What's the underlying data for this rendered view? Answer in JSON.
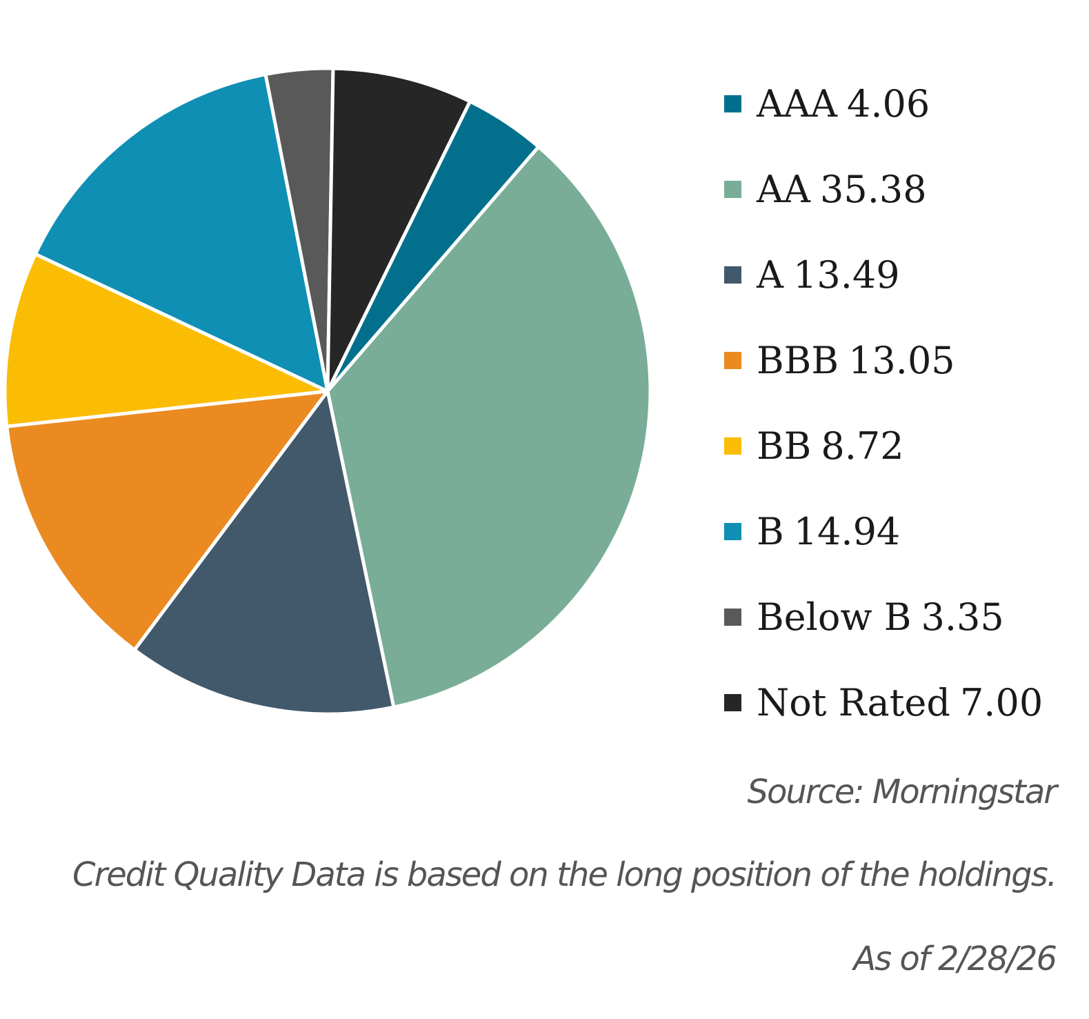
{
  "chart_data": {
    "type": "pie",
    "categories": [
      "AAA",
      "AA",
      "A",
      "BBB",
      "BB",
      "B",
      "Below B",
      "Not Rated"
    ],
    "values": [
      4.06,
      35.38,
      13.49,
      13.05,
      8.72,
      14.94,
      3.35,
      7.0
    ],
    "value_labels": [
      "4.06",
      "35.38",
      "13.49",
      "13.05",
      "8.72",
      "14.94",
      "3.35",
      "7.00"
    ],
    "colors": [
      "#02708c",
      "#79ad98",
      "#42586b",
      "#ea8a20",
      "#fbbd03",
      "#0f8fb3",
      "#595959",
      "#262626"
    ],
    "legend_position": "right"
  },
  "notes": {
    "source": "Source: Morningstar",
    "basis": "Credit Quality Data is based on the long position of the holdings.",
    "as_of": "As of 2/28/26"
  }
}
